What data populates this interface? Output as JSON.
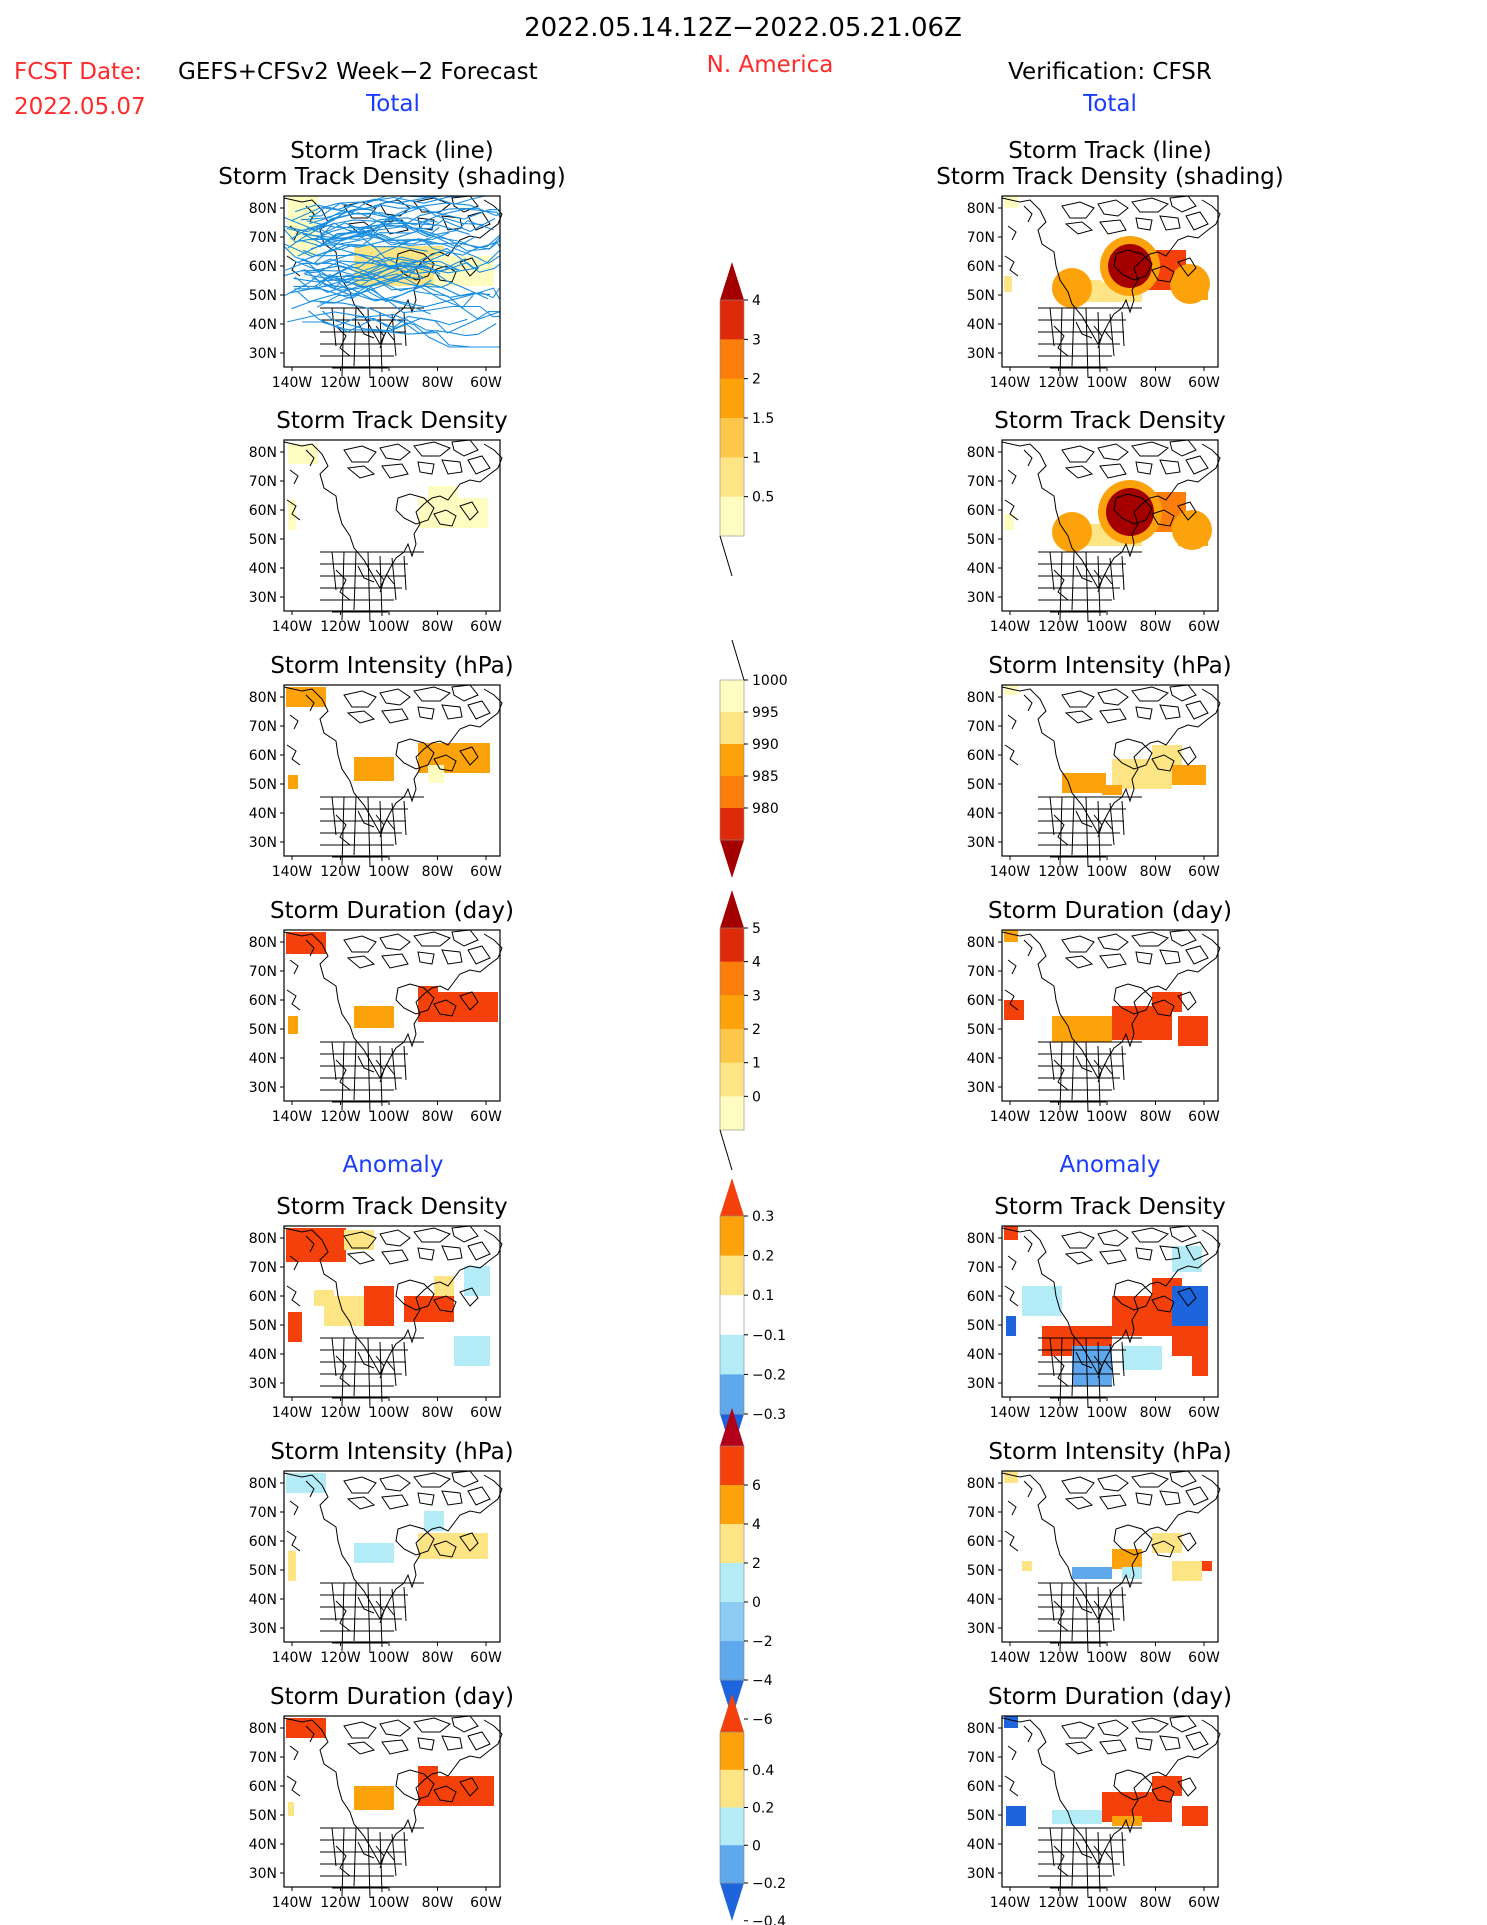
{
  "header": {
    "period": "2022.05.14.12Z−2022.05.21.06Z",
    "region": "N. America",
    "fcst_date_label": "FCST Date:",
    "fcst_model": "GEFS+CFSv2 Week−2 Forecast",
    "fcst_date": "2022.05.07",
    "verification": "Verification: CFSR"
  },
  "section_labels": {
    "total": "Total",
    "anomaly": "Anomaly"
  },
  "panel_titles": {
    "track_line": "Storm Track (line)",
    "track_shading": "Storm Track Density (shading)",
    "density": "Storm Track Density",
    "intensity": "Storm Intensity (hPa)",
    "duration": "Storm Duration (day)"
  },
  "axes": {
    "lat_labels": [
      "80N",
      "70N",
      "60N",
      "50N",
      "40N",
      "30N"
    ],
    "lon_labels": [
      "140W",
      "120W",
      "100W",
      "80W",
      "60W"
    ]
  },
  "colorbars": {
    "track_density": {
      "labels": [
        "4",
        "3",
        "2",
        "1.5",
        "1",
        "0.5"
      ],
      "colors": [
        "#a50000",
        "#dd2a0a",
        "#fb7d0c",
        "#fca30c",
        "#fdc74a",
        "#fde484",
        "#fefcc0"
      ]
    },
    "intensity": {
      "labels": [
        "1000",
        "995",
        "990",
        "985",
        "980"
      ],
      "colors": [
        "#fefcc0",
        "#fde484",
        "#fca30c",
        "#fb7d0c",
        "#dd2a0a",
        "#a50000"
      ]
    },
    "duration": {
      "labels": [
        "5",
        "4",
        "3",
        "2",
        "1",
        "0"
      ],
      "colors": [
        "#a50000",
        "#dd2a0a",
        "#fb7d0c",
        "#fca30c",
        "#fdc74a",
        "#fde484",
        "#fefcc0"
      ]
    },
    "anom_density": {
      "labels": [
        "0.3",
        "0.2",
        "0.1",
        "−0.1",
        "−0.2",
        "−0.3"
      ],
      "colors": [
        "#f4410c",
        "#fca30c",
        "#fde484",
        "#ffffff",
        "#b3ecf7",
        "#5fa8ee",
        "#1e64dc"
      ]
    },
    "anom_intensity": {
      "labels": [
        "6",
        "4",
        "2",
        "0",
        "−2",
        "−4",
        "−6"
      ],
      "colors": [
        "#b0001a",
        "#f4410c",
        "#fca30c",
        "#fde484",
        "#b3ecf7",
        "#8ccbf3",
        "#5fa8ee",
        "#1e64dc"
      ]
    },
    "anom_duration": {
      "labels": [
        "0.4",
        "0.2",
        "0",
        "−0.2",
        "−0.4"
      ],
      "colors": [
        "#f4410c",
        "#fca30c",
        "#fde484",
        "#b3ecf7",
        "#5fa8ee",
        "#1e64dc"
      ]
    }
  },
  "colors": {
    "red_text": "#ff2a2a",
    "blue_text": "#1a3cff",
    "track_line": "#1a8fe0"
  }
}
